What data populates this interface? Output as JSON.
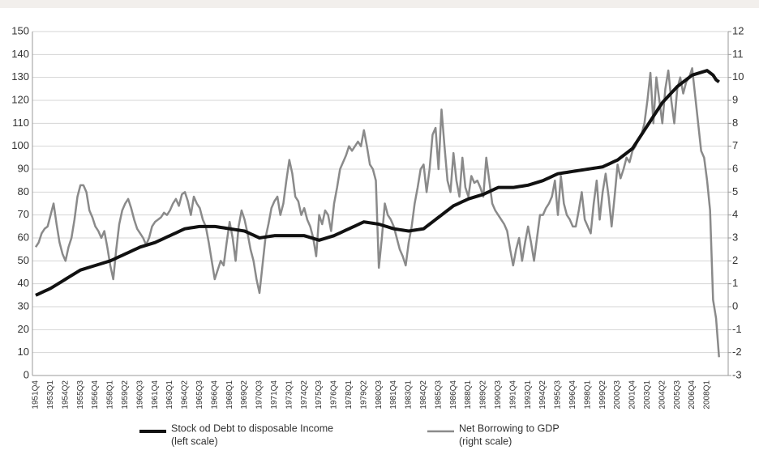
{
  "chart_data": {
    "type": "line",
    "categories": [
      "1951Q4",
      null,
      null,
      null,
      null,
      "1953Q1",
      null,
      null,
      null,
      null,
      "1954Q2",
      null,
      null,
      null,
      null,
      "1955Q3",
      null,
      null,
      null,
      null,
      "1956Q4",
      null,
      null,
      null,
      null,
      "1958Q1",
      null,
      null,
      null,
      null,
      "1959Q2",
      null,
      null,
      null,
      null,
      "1960Q3",
      null,
      null,
      null,
      null,
      "1961Q4",
      null,
      null,
      null,
      null,
      "1963Q1",
      null,
      null,
      null,
      null,
      "1964Q2",
      null,
      null,
      null,
      null,
      "1965Q3",
      null,
      null,
      null,
      null,
      "1966Q4",
      null,
      null,
      null,
      null,
      "1968Q1",
      null,
      null,
      null,
      null,
      "1969Q2",
      null,
      null,
      null,
      null,
      "1970Q3",
      null,
      null,
      null,
      null,
      "1971Q4",
      null,
      null,
      null,
      null,
      "1973Q1",
      null,
      null,
      null,
      null,
      "1974Q2",
      null,
      null,
      null,
      null,
      "1975Q3",
      null,
      null,
      null,
      null,
      "1976Q4",
      null,
      null,
      null,
      null,
      "1978Q1",
      null,
      null,
      null,
      null,
      "1979Q2",
      null,
      null,
      null,
      null,
      "1980Q3",
      null,
      null,
      null,
      null,
      "1981Q4",
      null,
      null,
      null,
      null,
      "1983Q1",
      null,
      null,
      null,
      null,
      "1984Q2",
      null,
      null,
      null,
      null,
      "1985Q3",
      null,
      null,
      null,
      null,
      "1986Q4",
      null,
      null,
      null,
      null,
      "1988Q1",
      null,
      null,
      null,
      null,
      "1989Q2",
      null,
      null,
      null,
      null,
      "1990Q3",
      null,
      null,
      null,
      null,
      "1991Q4",
      null,
      null,
      null,
      null,
      "1993Q1",
      null,
      null,
      null,
      null,
      "1994Q2",
      null,
      null,
      null,
      null,
      "1995Q3",
      null,
      null,
      null,
      null,
      "1996Q4",
      null,
      null,
      null,
      null,
      "1998Q1",
      null,
      null,
      null,
      null,
      "1999Q2",
      null,
      null,
      null,
      null,
      "2000Q3",
      null,
      null,
      null,
      null,
      "2001Q4",
      null,
      null,
      null,
      null,
      "2003Q1",
      null,
      null,
      null,
      null,
      "2004Q2",
      null,
      null,
      null,
      null,
      "2005Q3",
      null,
      null,
      null,
      null,
      "2006Q4",
      null,
      null,
      null,
      null,
      "2008Q1",
      null,
      null,
      null,
      null
    ],
    "series": [
      {
        "name": "Stock od Debt to disposable Income",
        "legend_note": "(left scale)",
        "color": "#111111",
        "axis": "y",
        "values": [
          35,
          35.6,
          36.2,
          36.8,
          37.4,
          38,
          38.8,
          39.6,
          40.4,
          41.2,
          42,
          42.8,
          43.6,
          44.4,
          45.2,
          46,
          46.4,
          46.8,
          47.2,
          47.6,
          48,
          48.4,
          48.8,
          49.2,
          49.6,
          50,
          50.6,
          51.2,
          51.8,
          52.4,
          53,
          53.6,
          54.2,
          54.8,
          55.4,
          56,
          56.4,
          56.8,
          57.2,
          57.6,
          58,
          58.6,
          59.2,
          59.8,
          60.4,
          61,
          61.6,
          62.2,
          62.8,
          63.4,
          64,
          64.2,
          64.4,
          64.6,
          64.8,
          65,
          65,
          65,
          65,
          65,
          65,
          64.8,
          64.6,
          64.4,
          64.2,
          64,
          63.8,
          63.6,
          63.4,
          63.2,
          63,
          62.4,
          61.8,
          61.2,
          60.6,
          60,
          60.2,
          60.4,
          60.6,
          60.8,
          61,
          61,
          61,
          61,
          61,
          61,
          61,
          61,
          61,
          61,
          61,
          60.6,
          60.2,
          59.8,
          59.4,
          59,
          59.4,
          59.8,
          60.2,
          60.6,
          61,
          61.6,
          62.2,
          62.8,
          63.4,
          64,
          64.6,
          65.2,
          65.8,
          66.4,
          67,
          66.8,
          66.6,
          66.4,
          66.2,
          66,
          65.6,
          65.2,
          64.8,
          64.4,
          64,
          63.8,
          63.6,
          63.4,
          63.2,
          63,
          63.2,
          63.4,
          63.6,
          63.8,
          64,
          65,
          66,
          67,
          68,
          69,
          70,
          71,
          72,
          73,
          74,
          74.6,
          75.2,
          75.8,
          76.4,
          77,
          77.4,
          77.8,
          78.2,
          78.6,
          79,
          79.6,
          80.2,
          80.8,
          81.4,
          82,
          82,
          82,
          82,
          82,
          82,
          82.2,
          82.4,
          82.6,
          82.8,
          83,
          83.4,
          83.8,
          84.2,
          84.6,
          85,
          85.6,
          86.2,
          86.8,
          87.4,
          88,
          88.2,
          88.4,
          88.6,
          88.8,
          89,
          89.2,
          89.4,
          89.6,
          89.8,
          90,
          90.2,
          90.4,
          90.6,
          90.8,
          91,
          91.6,
          92.2,
          92.8,
          93.4,
          94,
          95,
          96,
          97,
          98,
          99,
          101,
          103,
          105,
          107,
          109,
          111,
          113,
          115,
          117,
          119,
          120.4,
          121.8,
          123.2,
          124.6,
          126,
          127,
          128,
          129,
          130,
          131,
          131.4,
          131.8,
          132.2,
          132.6,
          133,
          132,
          131,
          129,
          128
        ]
      },
      {
        "name": "Net Borrowing to GDP",
        "legend_note": "(right scale)",
        "color": "#8a8a8a",
        "axis": "y2",
        "values": [
          2.6,
          2.8,
          3.2,
          3.4,
          3.5,
          4.0,
          4.5,
          3.6,
          2.8,
          2.3,
          2.0,
          2.6,
          3.0,
          3.8,
          4.8,
          5.3,
          5.3,
          5.0,
          4.2,
          3.9,
          3.5,
          3.3,
          3.0,
          3.3,
          2.6,
          1.8,
          1.2,
          2.5,
          3.6,
          4.2,
          4.5,
          4.7,
          4.3,
          3.8,
          3.4,
          3.2,
          3.0,
          2.7,
          3.0,
          3.5,
          3.7,
          3.8,
          3.9,
          4.1,
          4.0,
          4.2,
          4.5,
          4.7,
          4.4,
          4.9,
          5.0,
          4.6,
          4.0,
          4.8,
          4.5,
          4.3,
          3.8,
          3.5,
          2.8,
          2.0,
          1.2,
          1.6,
          2.0,
          1.8,
          2.8,
          3.7,
          3.0,
          2.0,
          3.5,
          4.2,
          3.8,
          3.2,
          2.5,
          2.0,
          1.2,
          0.6,
          1.8,
          3.0,
          3.6,
          4.3,
          4.6,
          4.8,
          4.0,
          4.5,
          5.5,
          6.4,
          5.8,
          4.8,
          4.6,
          4.0,
          4.3,
          3.8,
          3.5,
          3.0,
          2.2,
          4.0,
          3.6,
          4.2,
          4.0,
          3.3,
          4.5,
          5.2,
          6.0,
          6.3,
          6.6,
          7.0,
          6.8,
          7.0,
          7.2,
          7.0,
          7.7,
          7.0,
          6.2,
          6.0,
          5.5,
          1.7,
          3.0,
          4.5,
          4.0,
          3.8,
          3.5,
          3.0,
          2.5,
          2.2,
          1.8,
          2.8,
          3.5,
          4.5,
          5.2,
          6.0,
          6.2,
          5.0,
          6.0,
          7.5,
          7.8,
          6.0,
          8.6,
          7.0,
          5.5,
          5.0,
          6.7,
          5.5,
          4.8,
          6.5,
          5.2,
          4.8,
          5.7,
          5.4,
          5.5,
          5.2,
          4.8,
          6.5,
          5.5,
          4.5,
          4.2,
          4.0,
          3.8,
          3.6,
          3.3,
          2.5,
          1.8,
          2.5,
          3.0,
          2.0,
          2.8,
          3.5,
          2.8,
          2.0,
          3.0,
          4.0,
          4.0,
          4.3,
          4.5,
          4.8,
          5.5,
          4.0,
          5.7,
          4.5,
          4.0,
          3.8,
          3.5,
          3.5,
          4.2,
          5.0,
          3.8,
          3.5,
          3.2,
          4.5,
          5.5,
          3.8,
          5.0,
          5.8,
          4.8,
          3.5,
          4.8,
          6.2,
          5.6,
          6.0,
          6.5,
          6.3,
          6.8,
          7.0,
          7.3,
          7.5,
          8.0,
          9.0,
          10.2,
          8.0,
          10.0,
          9.0,
          8.0,
          9.5,
          10.3,
          9.0,
          8.0,
          9.5,
          10.0,
          9.3,
          9.8,
          10.0,
          10.4,
          9.2,
          8.0,
          6.8,
          6.5,
          5.5,
          4.2,
          0.3,
          -0.5,
          -2.2
        ]
      }
    ],
    "ylim": [
      0,
      150
    ],
    "yticks": [
      0,
      10,
      20,
      30,
      40,
      50,
      60,
      70,
      80,
      90,
      100,
      110,
      120,
      130,
      140,
      150
    ],
    "y2lim": [
      -3,
      12
    ],
    "y2ticks": [
      -3,
      -2,
      -1,
      0,
      1,
      2,
      3,
      4,
      5,
      6,
      7,
      8,
      9,
      10,
      11,
      12
    ],
    "grid": true,
    "legend": "bottom"
  }
}
